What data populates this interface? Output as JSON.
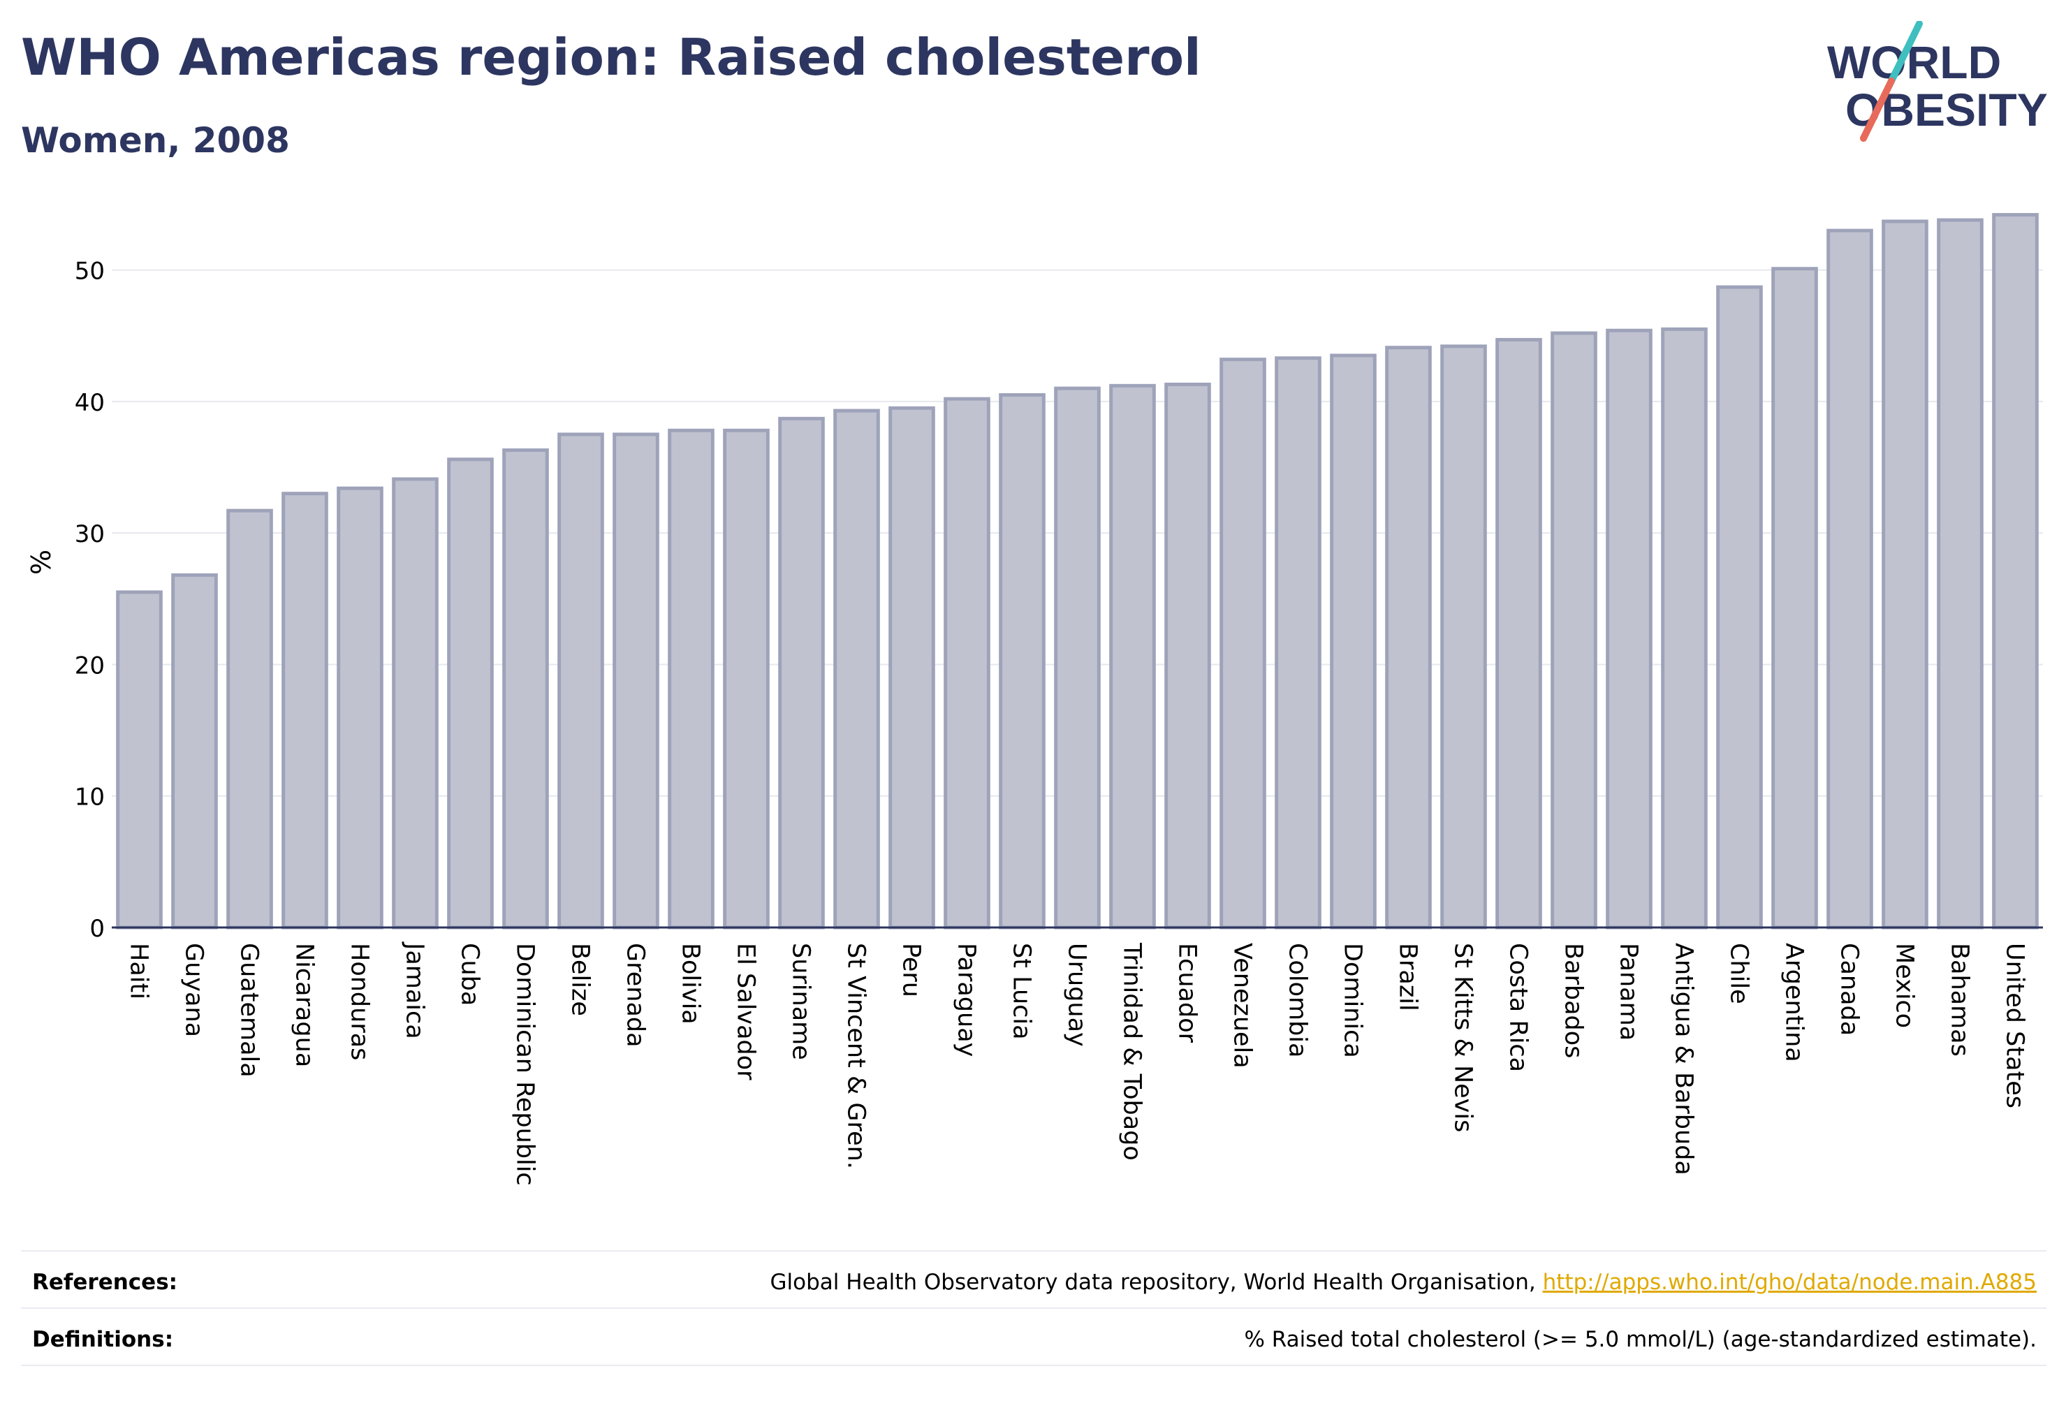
{
  "header": {
    "title": "WHO Americas region: Raised cholesterol",
    "subtitle": "Women, 2008"
  },
  "logo": {
    "line1": "WORLD",
    "line2": "OBESITY"
  },
  "colors": {
    "bar_fill": "#c0c3cf",
    "bar_stroke": "#9ea3ba",
    "text": "#2d3660",
    "grid": "#e6e8ee",
    "link": "#e0a900",
    "logo_teal": "#3fbfbf",
    "logo_coral": "#e86a5a"
  },
  "chart_data": {
    "type": "bar",
    "title": "WHO Americas region: Raised cholesterol",
    "subtitle": "Women, 2008",
    "ylabel": "%",
    "ylim": [
      0,
      55
    ],
    "yticks": [
      0,
      10,
      20,
      30,
      40,
      50
    ],
    "grid": true,
    "categories": [
      "Haiti",
      "Guyana",
      "Guatemala",
      "Nicaragua",
      "Honduras",
      "Jamaica",
      "Cuba",
      "Dominican Republic",
      "Belize",
      "Grenada",
      "Bolivia",
      "El Salvador",
      "Suriname",
      "St Vincent & Gren.",
      "Peru",
      "Paraguay",
      "St Lucia",
      "Uruguay",
      "Trinidad & Tobago",
      "Ecuador",
      "Venezuela",
      "Colombia",
      "Dominica",
      "Brazil",
      "St Kitts & Nevis",
      "Costa Rica",
      "Barbados",
      "Panama",
      "Antigua & Barbuda",
      "Chile",
      "Argentina",
      "Canada",
      "Mexico",
      "Bahamas",
      "United States"
    ],
    "values": [
      25.5,
      26.8,
      31.7,
      33.0,
      33.4,
      34.1,
      35.6,
      36.3,
      37.5,
      37.5,
      37.8,
      37.8,
      38.7,
      39.3,
      39.5,
      40.2,
      40.5,
      41.0,
      41.2,
      41.3,
      43.2,
      43.3,
      43.5,
      44.1,
      44.2,
      44.7,
      45.2,
      45.4,
      45.5,
      48.7,
      50.1,
      53.0,
      53.7,
      53.8,
      54.2
    ]
  },
  "footer": {
    "references_label": "References:",
    "references_text": "Global Health Observatory data repository, World Health Organisation, ",
    "references_link": "http://apps.who.int/gho/data/node.main.A885",
    "definitions_label": "Definitions:",
    "definitions_text": "% Raised total cholesterol (>= 5.0 mmol/L) (age-standardized estimate)."
  }
}
